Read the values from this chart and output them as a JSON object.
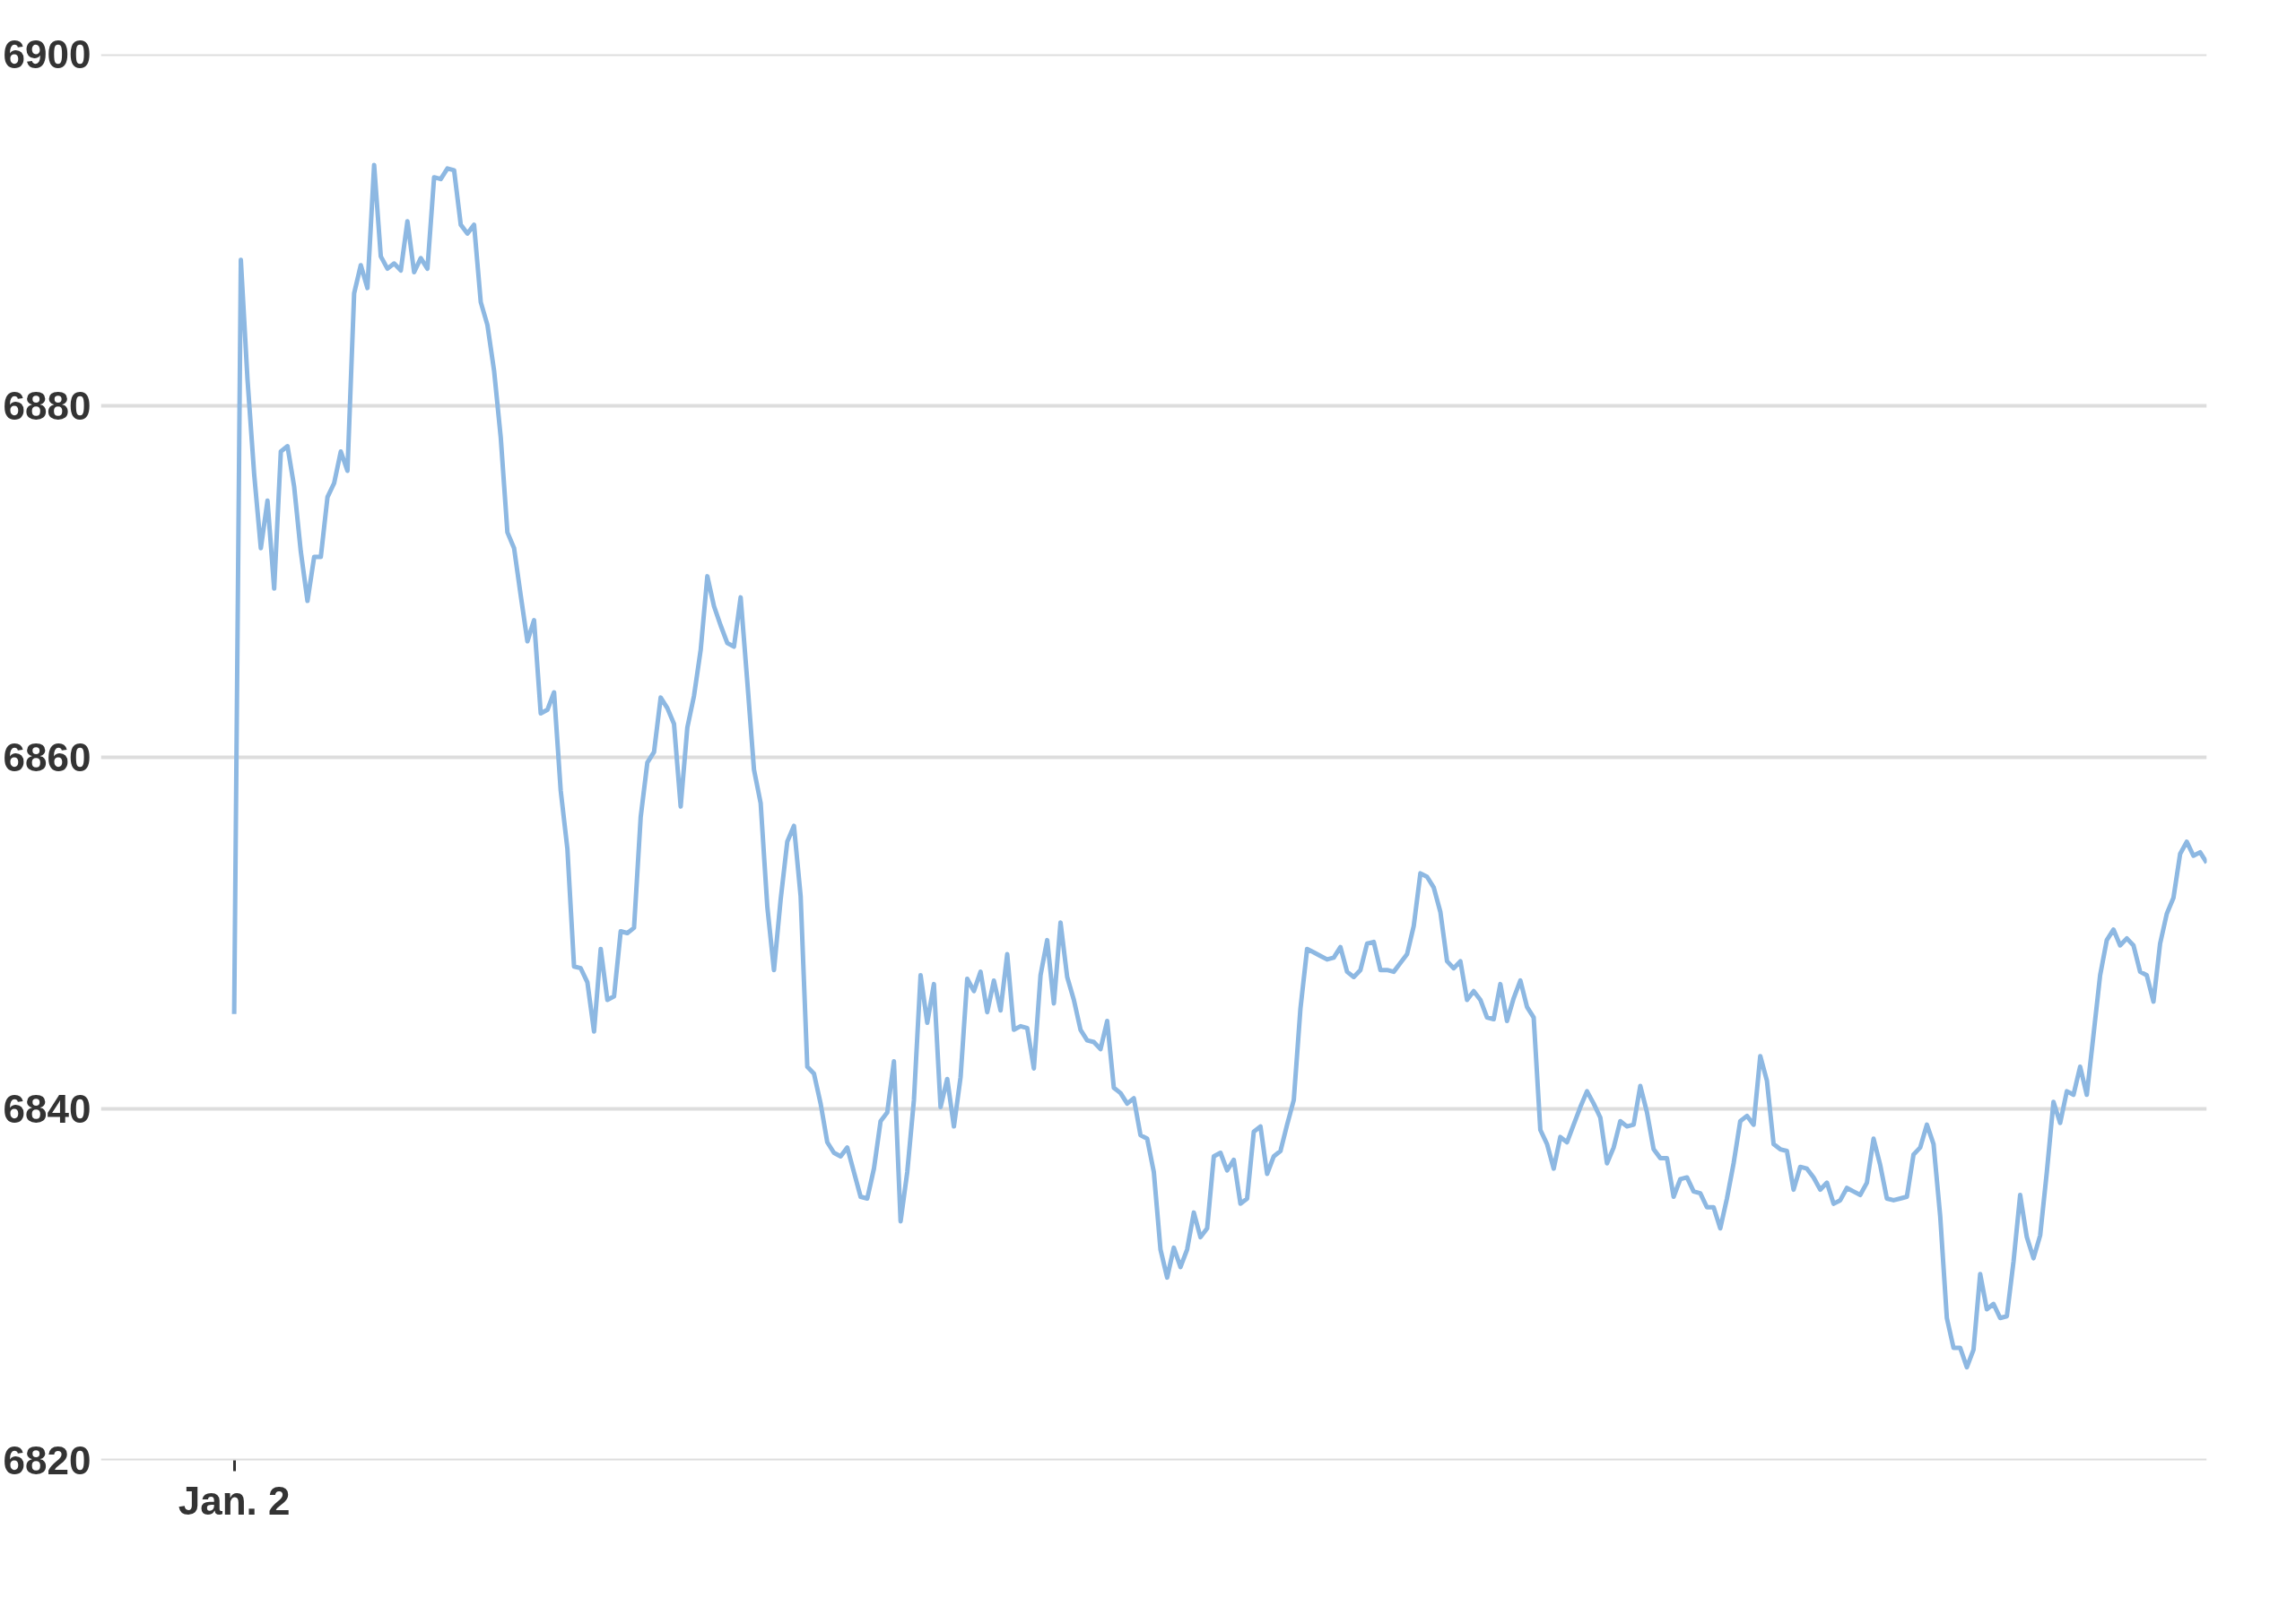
{
  "chart_data": {
    "type": "line",
    "categories": [
      "Jan. 2",
      null,
      null,
      null,
      null,
      null,
      null,
      null,
      null,
      null,
      null,
      null,
      null,
      null,
      null,
      null,
      null,
      null,
      null,
      null,
      null,
      null,
      null,
      null,
      null,
      null,
      null,
      null,
      null,
      null,
      null,
      null,
      null,
      null,
      null,
      null,
      null,
      null,
      null,
      null,
      null,
      null,
      null,
      null,
      null,
      null,
      null,
      null,
      null,
      null,
      null,
      null,
      null,
      null,
      null,
      null,
      null,
      null,
      null,
      null,
      null,
      null,
      null,
      null,
      null,
      null,
      null,
      null,
      null,
      null,
      null,
      null,
      null,
      null,
      null,
      null,
      null,
      null,
      null,
      null,
      null,
      null,
      null,
      null,
      null,
      null,
      null,
      null,
      null,
      null,
      null,
      null,
      null,
      null,
      null,
      null,
      null,
      null,
      null,
      null,
      null,
      null,
      null,
      null,
      null,
      null,
      null,
      null,
      null,
      null,
      null,
      null,
      null,
      null,
      null,
      null,
      null,
      null,
      null,
      null,
      null,
      null,
      null,
      null,
      null,
      null,
      null,
      null,
      null,
      null,
      null,
      null,
      null,
      null,
      null,
      null,
      null,
      null,
      null,
      null,
      null,
      null,
      null,
      null,
      null,
      null,
      null,
      null,
      null,
      null,
      null,
      null,
      null,
      null,
      null,
      null,
      null,
      null,
      null,
      null,
      null,
      null,
      null,
      null,
      null,
      null,
      null,
      null,
      null,
      null,
      null,
      null,
      null,
      null,
      null,
      null,
      null,
      null,
      null,
      null,
      null,
      null,
      null,
      null,
      null,
      null,
      null,
      null,
      null,
      null,
      null,
      null,
      null,
      null,
      null,
      null,
      null,
      null,
      null,
      null,
      null,
      null,
      null,
      null,
      null,
      null,
      null,
      null,
      null,
      null,
      null,
      null,
      null,
      null,
      null,
      null,
      null,
      null,
      null,
      null,
      null,
      null,
      null,
      null,
      null,
      null,
      null,
      null,
      null,
      null,
      null,
      null,
      null,
      null,
      null,
      null,
      null,
      null,
      null,
      null,
      null,
      null,
      null,
      null,
      null,
      null,
      null,
      null,
      null,
      null,
      null,
      null,
      null,
      null,
      null,
      null,
      null,
      null,
      null,
      null,
      null,
      null,
      null,
      null,
      null,
      null,
      null,
      null,
      null,
      null,
      null,
      null,
      null,
      null,
      null,
      null,
      null,
      null,
      null,
      null,
      null,
      null,
      null,
      null,
      null,
      null,
      null,
      null,
      null,
      null,
      null,
      null,
      null,
      null,
      null,
      null,
      null
    ],
    "series": [
      {
        "color": "#8db8e2",
        "values": [
          6845.4,
          6888.3,
          6881.5,
          6876.1,
          6871.9,
          6874.6,
          6869.6,
          6877.4,
          6877.7,
          6875.4,
          6871.7,
          6868.9,
          6871.4,
          6871.4,
          6874.8,
          6875.6,
          6877.4,
          6876.3,
          6886.4,
          6888.0,
          6886.7,
          6893.7,
          6888.5,
          6887.8,
          6888.1,
          6887.7,
          6890.5,
          6887.6,
          6888.4,
          6887.8,
          6893.0,
          6892.9,
          6893.5,
          6893.4,
          6890.3,
          6889.8,
          6890.3,
          6885.9,
          6884.6,
          6882.0,
          6878.2,
          6872.8,
          6871.9,
          6869.2,
          6866.6,
          6867.8,
          6862.5,
          6862.7,
          6863.7,
          6858.1,
          6854.8,
          6848.1,
          6848.0,
          6847.2,
          6844.4,
          6849.1,
          6846.2,
          6846.4,
          6850.1,
          6850.0,
          6850.3,
          6856.6,
          6859.7,
          6860.3,
          6863.4,
          6862.8,
          6861.9,
          6857.2,
          6861.7,
          6863.5,
          6866.1,
          6870.3,
          6868.6,
          6867.5,
          6866.5,
          6866.3,
          6869.1,
          6864.3,
          6859.3,
          6857.4,
          6851.5,
          6847.9,
          6851.9,
          6855.2,
          6856.1,
          6852.1,
          6842.4,
          6842.0,
          6840.3,
          6838.1,
          6837.5,
          6837.3,
          6837.8,
          6836.4,
          6835.0,
          6834.9,
          6836.6,
          6839.3,
          6839.8,
          6842.7,
          6833.6,
          6836.4,
          6840.5,
          6847.6,
          6844.9,
          6847.1,
          6840.1,
          6841.7,
          6839.0,
          6841.8,
          6847.4,
          6846.7,
          6847.8,
          6845.5,
          6847.3,
          6845.6,
          6848.8,
          6844.5,
          6844.7,
          6844.6,
          6842.3,
          6847.6,
          6849.6,
          6846.0,
          6850.6,
          6847.5,
          6846.2,
          6844.5,
          6843.9,
          6843.8,
          6843.4,
          6845.0,
          6841.2,
          6840.9,
          6840.3,
          6840.6,
          6838.5,
          6838.3,
          6836.4,
          6832.0,
          6830.4,
          6832.1,
          6831.0,
          6832.0,
          6834.1,
          6832.7,
          6833.2,
          6837.3,
          6837.5,
          6836.5,
          6837.1,
          6834.6,
          6834.9,
          6838.7,
          6839.0,
          6836.3,
          6837.3,
          6837.6,
          6839.1,
          6840.5,
          6845.7,
          6849.1,
          6848.9,
          6848.7,
          6848.5,
          6848.6,
          6849.2,
          6847.8,
          6847.5,
          6847.9,
          6849.4,
          6849.5,
          6847.9,
          6847.9,
          6847.8,
          6848.3,
          6848.8,
          6850.4,
          6853.4,
          6853.2,
          6852.6,
          6851.2,
          6848.4,
          6848.0,
          6848.4,
          6846.2,
          6846.7,
          6846.2,
          6845.2,
          6845.1,
          6847.1,
          6845.0,
          6846.3,
          6847.3,
          6845.8,
          6845.2,
          6838.8,
          6838.0,
          6836.6,
          6838.4,
          6838.1,
          6839.1,
          6840.1,
          6841.0,
          6840.3,
          6839.5,
          6836.9,
          6837.8,
          6839.3,
          6839.0,
          6839.1,
          6841.3,
          6839.8,
          6837.7,
          6837.2,
          6837.2,
          6835.0,
          6836.0,
          6836.1,
          6835.3,
          6835.2,
          6834.4,
          6834.4,
          6833.2,
          6834.9,
          6836.9,
          6839.3,
          6839.6,
          6839.1,
          6843.0,
          6841.6,
          6838.0,
          6837.7,
          6837.6,
          6835.4,
          6836.7,
          6836.6,
          6836.1,
          6835.4,
          6835.8,
          6834.6,
          6834.8,
          6835.5,
          6835.3,
          6835.1,
          6835.8,
          6838.3,
          6836.8,
          6834.9,
          6834.8,
          6834.9,
          6835.0,
          6837.4,
          6837.8,
          6839.1,
          6838.0,
          6833.9,
          6828.1,
          6826.4,
          6826.4,
          6825.3,
          6826.3,
          6830.6,
          6828.6,
          6828.9,
          6828.1,
          6828.2,
          6831.3,
          6835.1,
          6832.7,
          6831.5,
          6832.8,
          6836.4,
          6840.4,
          6839.2,
          6841.0,
          6840.8,
          6842.4,
          6840.8,
          6844.2,
          6847.6,
          6849.6,
          6850.2,
          6849.3,
          6849.7,
          6849.3,
          6847.8,
          6847.6,
          6846.1,
          6849.4,
          6851.1,
          6852.0,
          6854.5,
          6855.2,
          6854.4,
          6854.6,
          6854.0
        ]
      }
    ],
    "ylim": [
      6820,
      6900
    ],
    "yticks": [
      6820,
      6840,
      6860,
      6880,
      6900
    ],
    "grid": "y",
    "line_style": "solid",
    "marker": "none"
  }
}
